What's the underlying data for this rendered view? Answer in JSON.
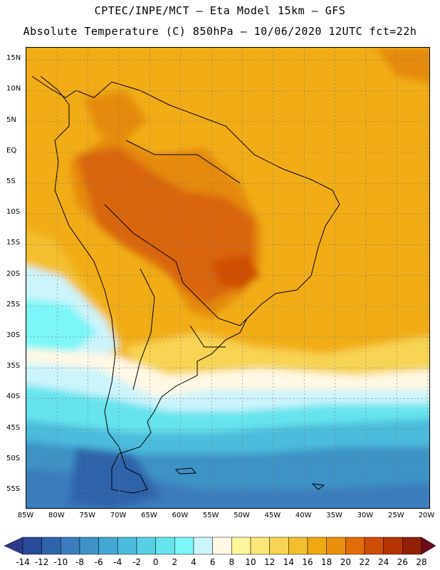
{
  "header": {
    "line1": "CPTEC/INPE/MCT –  Eta Model 15km – GFS",
    "line2": "Absolute Temperature (C) 850hPa – 10/06/2020 12UTC fct=22h"
  },
  "map": {
    "variable": "Absolute Temperature (C)",
    "level": "850hPa",
    "model": "Eta Model 15km",
    "lat_labels": [
      "15N",
      "10N",
      "5N",
      "EQ",
      "5S",
      "10S",
      "15S",
      "20S",
      "25S",
      "30S",
      "35S",
      "40S",
      "45S",
      "50S",
      "55S"
    ],
    "lat_values": [
      15,
      10,
      5,
      0,
      -5,
      -10,
      -15,
      -20,
      -25,
      -30,
      -35,
      -40,
      -45,
      -50,
      -55
    ],
    "lon_labels": [
      "85W",
      "80W",
      "75W",
      "70W",
      "65W",
      "60W",
      "55W",
      "50W",
      "45W",
      "40W",
      "35W",
      "30W",
      "25W",
      "20W"
    ],
    "lon_values": [
      -85,
      -80,
      -75,
      -70,
      -65,
      -60,
      -55,
      -50,
      -45,
      -40,
      -35,
      -30,
      -25,
      -20
    ],
    "lat_range": [
      -58,
      17
    ],
    "lon_range": [
      -85,
      -19.5
    ]
  },
  "colorbar": {
    "labels": [
      "-14",
      "-12",
      "-10",
      "-8",
      "-6",
      "-4",
      "-2",
      "0",
      "2",
      "4",
      "6",
      "8",
      "10",
      "12",
      "14",
      "16",
      "18",
      "20",
      "22",
      "24",
      "26",
      "28"
    ],
    "under_color": "#2c3a8c",
    "over_color": "#6a0a1a",
    "colors": [
      "#2a4a9a",
      "#2f64aa",
      "#3a7cbc",
      "#3e92c6",
      "#44a6d2",
      "#4cbcdc",
      "#58d0e4",
      "#66e4ee",
      "#7cf6f8",
      "#ccf4fb",
      "#fff8e4",
      "#fdf69a",
      "#fbe676",
      "#f7d452",
      "#f3bf2e",
      "#efa814",
      "#ea900c",
      "#e06d08",
      "#cf4d06",
      "#b63504",
      "#912006"
    ],
    "lowest_color": "#263f8e",
    "highest_color": "#5e1010"
  }
}
